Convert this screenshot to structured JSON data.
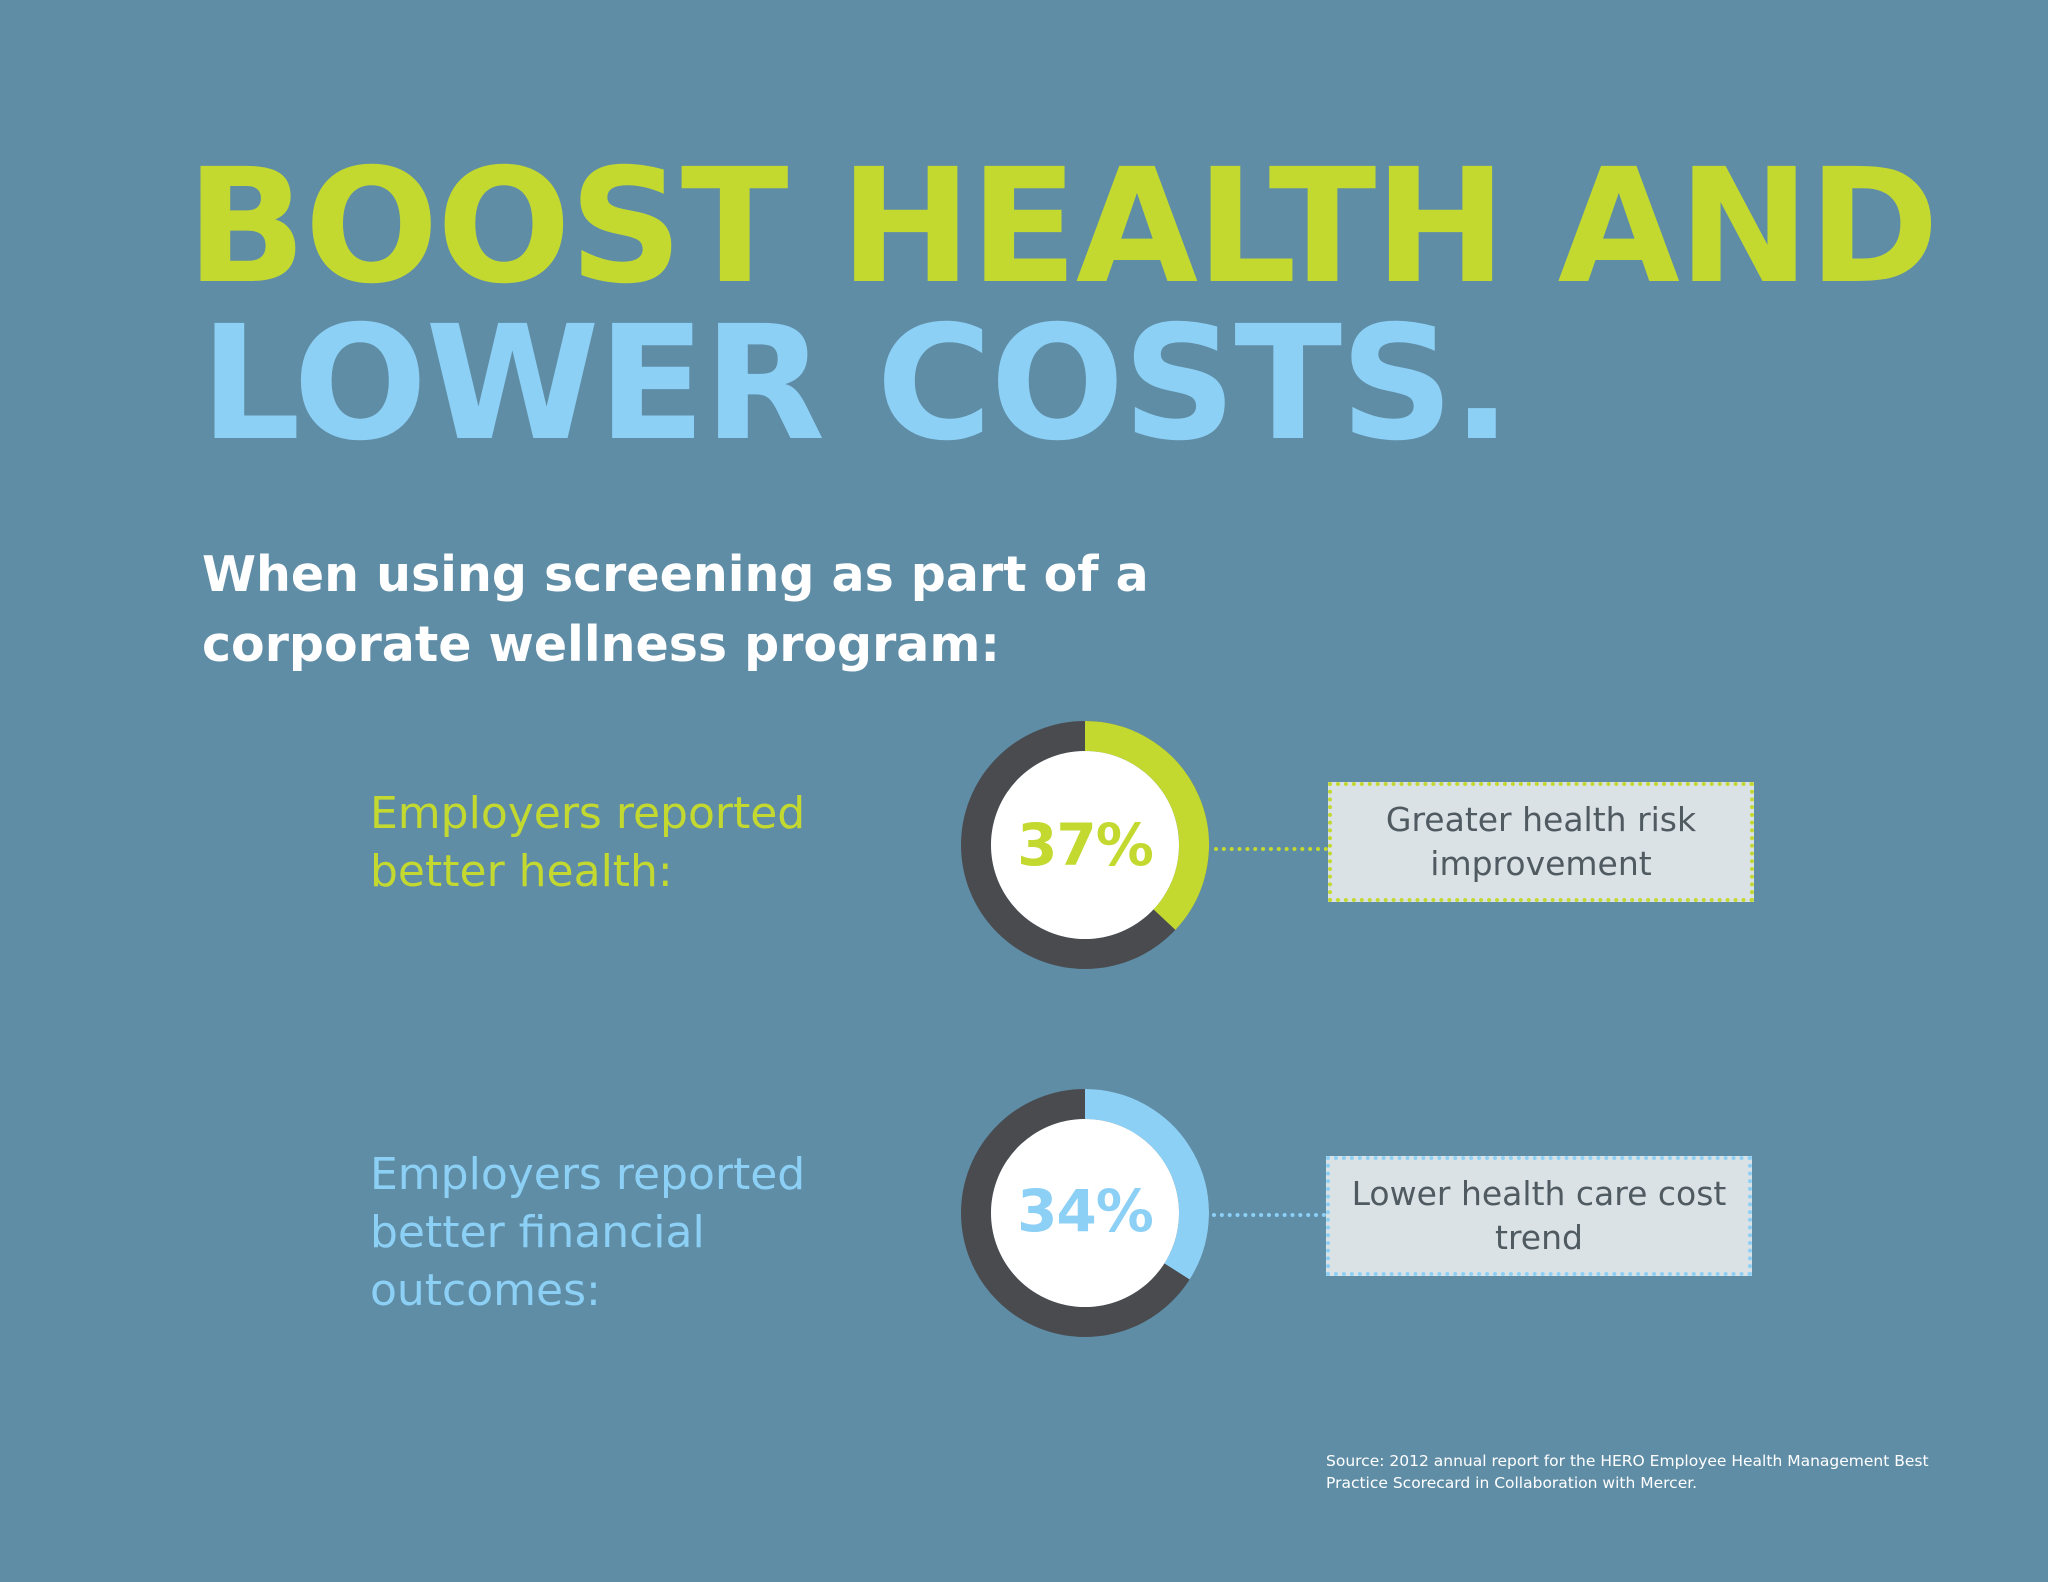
{
  "headline": {
    "line1": "BOOST HEALTH AND",
    "line2": "LOWER COSTS."
  },
  "intro": "When using screening as part of a corporate wellness program:",
  "colors": {
    "background": "#5f8da6",
    "green": "#c3d930",
    "blue": "#8dd0f5",
    "donut_track": "#4a4b4f",
    "callout_fill": "#dbe2e6"
  },
  "chart_data": [
    {
      "type": "pie",
      "label": "Employers reported better health:",
      "value": 37,
      "value_text": "37%",
      "callout": "Greater health risk improvement",
      "color": "#c3d930"
    },
    {
      "type": "pie",
      "label": "Employers reported better financial outcomes:",
      "value": 34,
      "value_text": "34%",
      "callout": "Lower health care cost trend",
      "color": "#8dd0f5"
    }
  ],
  "source": "Source: 2012 annual report for the HERO Employee Health Management Best Practice Scorecard in Collaboration with Mercer."
}
